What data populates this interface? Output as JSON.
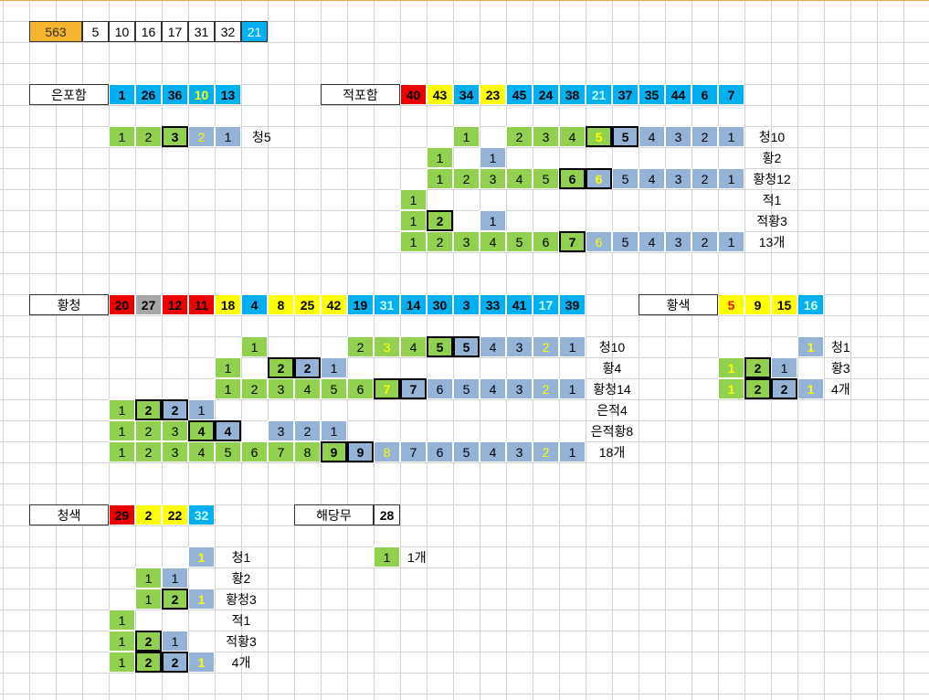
{
  "palette": {
    "orange": "#f5b52e",
    "red": "#ee0000",
    "yellow": "#ffff00",
    "blue": "#00b0f0",
    "green": "#92d050",
    "lightblue": "#95b3d7",
    "gray": "#a6a6a6",
    "white": "#ffffff",
    "text_yellow": "#ffff00",
    "text_cyan": "#ccffff",
    "text_red": "#ff0000",
    "gridline": "#d4d4d4"
  },
  "draw_row": {
    "label": "563",
    "cells": [
      {
        "v": "5",
        "c": "white"
      },
      {
        "v": "10",
        "c": "white"
      },
      {
        "v": "16",
        "c": "white"
      },
      {
        "v": "17",
        "c": "white"
      },
      {
        "v": "31",
        "c": "white"
      },
      {
        "v": "32",
        "c": "white"
      },
      {
        "v": "21",
        "c": "blue"
      }
    ]
  },
  "sections": [
    {
      "name": "은포함",
      "numbers": [
        {
          "v": "1",
          "c": "blue"
        },
        {
          "v": "26",
          "c": "blue"
        },
        {
          "v": "36",
          "c": "blue"
        },
        {
          "v": "10",
          "c": "blue",
          "t": "text_yellow"
        },
        {
          "v": "13",
          "c": "blue"
        }
      ],
      "rows": [
        {
          "cells": [
            {
              "v": "1",
              "c": "green"
            },
            {
              "v": "2",
              "c": "green"
            },
            {
              "v": "3",
              "c": "green",
              "bold": true,
              "box": true
            },
            {
              "v": "2",
              "c": "lightblue",
              "t": "text_yellow"
            },
            {
              "v": "1",
              "c": "lightblue"
            }
          ],
          "label": "청5"
        }
      ]
    },
    {
      "name": "적포함",
      "numbers": [
        {
          "v": "40",
          "c": "red"
        },
        {
          "v": "43",
          "c": "yellow"
        },
        {
          "v": "34",
          "c": "blue"
        },
        {
          "v": "23",
          "c": "yellow"
        },
        {
          "v": "45",
          "c": "blue"
        },
        {
          "v": "24",
          "c": "blue"
        },
        {
          "v": "38",
          "c": "blue"
        },
        {
          "v": "21",
          "c": "blue",
          "t": "text_cyan"
        },
        {
          "v": "37",
          "c": "blue"
        },
        {
          "v": "35",
          "c": "blue"
        },
        {
          "v": "44",
          "c": "blue"
        },
        {
          "v": "6",
          "c": "blue"
        },
        {
          "v": "7",
          "c": "blue"
        }
      ],
      "rows": [
        {
          "cells": [
            null,
            null,
            {
              "v": "1",
              "c": "green"
            },
            null,
            {
              "v": "2",
              "c": "green"
            },
            {
              "v": "3",
              "c": "green"
            },
            {
              "v": "4",
              "c": "green"
            },
            {
              "v": "5",
              "c": "green",
              "t": "text_yellow",
              "bold": true,
              "box": true
            },
            {
              "v": "5",
              "c": "lightblue",
              "bold": true,
              "box": true
            },
            {
              "v": "4",
              "c": "lightblue"
            },
            {
              "v": "3",
              "c": "lightblue"
            },
            {
              "v": "2",
              "c": "lightblue"
            },
            {
              "v": "1",
              "c": "lightblue"
            }
          ],
          "label": "청10"
        },
        {
          "cells": [
            null,
            {
              "v": "1",
              "c": "green"
            },
            null,
            {
              "v": "1",
              "c": "lightblue"
            }
          ],
          "label": "황2"
        },
        {
          "cells": [
            null,
            {
              "v": "1",
              "c": "green"
            },
            {
              "v": "2",
              "c": "green"
            },
            {
              "v": "3",
              "c": "green"
            },
            {
              "v": "4",
              "c": "green"
            },
            {
              "v": "5",
              "c": "green"
            },
            {
              "v": "6",
              "c": "green",
              "bold": true,
              "box": true
            },
            {
              "v": "6",
              "c": "lightblue",
              "t": "text_yellow",
              "bold": true,
              "box": true
            },
            {
              "v": "5",
              "c": "lightblue"
            },
            {
              "v": "4",
              "c": "lightblue"
            },
            {
              "v": "3",
              "c": "lightblue"
            },
            {
              "v": "2",
              "c": "lightblue"
            },
            {
              "v": "1",
              "c": "lightblue"
            }
          ],
          "label": "황청12"
        },
        {
          "cells": [
            {
              "v": "1",
              "c": "green"
            }
          ],
          "label": "적1"
        },
        {
          "cells": [
            {
              "v": "1",
              "c": "green"
            },
            {
              "v": "2",
              "c": "green",
              "bold": true,
              "box": true
            },
            null,
            {
              "v": "1",
              "c": "lightblue"
            }
          ],
          "label": "적황3"
        },
        {
          "cells": [
            {
              "v": "1",
              "c": "green"
            },
            {
              "v": "2",
              "c": "green"
            },
            {
              "v": "3",
              "c": "green"
            },
            {
              "v": "4",
              "c": "green"
            },
            {
              "v": "5",
              "c": "green"
            },
            {
              "v": "6",
              "c": "green"
            },
            {
              "v": "7",
              "c": "green",
              "bold": true,
              "box": true
            },
            {
              "v": "6",
              "c": "lightblue",
              "t": "text_yellow"
            },
            {
              "v": "5",
              "c": "lightblue"
            },
            {
              "v": "4",
              "c": "lightblue"
            },
            {
              "v": "3",
              "c": "lightblue"
            },
            {
              "v": "2",
              "c": "lightblue"
            },
            {
              "v": "1",
              "c": "lightblue"
            }
          ],
          "label": "13개"
        }
      ]
    },
    {
      "name": "황청",
      "numbers": [
        {
          "v": "20",
          "c": "red"
        },
        {
          "v": "27",
          "c": "gray"
        },
        {
          "v": "12",
          "c": "red"
        },
        {
          "v": "11",
          "c": "red"
        },
        {
          "v": "18",
          "c": "yellow"
        },
        {
          "v": "4",
          "c": "blue"
        },
        {
          "v": "8",
          "c": "yellow"
        },
        {
          "v": "25",
          "c": "yellow"
        },
        {
          "v": "42",
          "c": "yellow"
        },
        {
          "v": "19",
          "c": "blue"
        },
        {
          "v": "31",
          "c": "blue",
          "t": "text_cyan"
        },
        {
          "v": "14",
          "c": "blue"
        },
        {
          "v": "30",
          "c": "blue"
        },
        {
          "v": "3",
          "c": "blue"
        },
        {
          "v": "33",
          "c": "blue"
        },
        {
          "v": "41",
          "c": "blue"
        },
        {
          "v": "17",
          "c": "blue",
          "t": "text_cyan"
        },
        {
          "v": "39",
          "c": "blue"
        }
      ],
      "rows": [
        {
          "cells": [
            null,
            null,
            null,
            null,
            null,
            {
              "v": "1",
              "c": "green"
            },
            null,
            null,
            null,
            {
              "v": "2",
              "c": "green"
            },
            {
              "v": "3",
              "c": "green",
              "t": "text_yellow"
            },
            {
              "v": "4",
              "c": "green"
            },
            {
              "v": "5",
              "c": "green",
              "bold": true,
              "box": true
            },
            {
              "v": "5",
              "c": "lightblue",
              "bold": true,
              "box": true
            },
            {
              "v": "4",
              "c": "lightblue"
            },
            {
              "v": "3",
              "c": "lightblue"
            },
            {
              "v": "2",
              "c": "lightblue",
              "t": "text_yellow"
            },
            {
              "v": "1",
              "c": "lightblue"
            }
          ],
          "label": "청10"
        },
        {
          "cells": [
            null,
            null,
            null,
            null,
            {
              "v": "1",
              "c": "green"
            },
            null,
            {
              "v": "2",
              "c": "green",
              "bold": true,
              "box": true
            },
            {
              "v": "2",
              "c": "lightblue",
              "bold": true,
              "box": true
            },
            {
              "v": "1",
              "c": "lightblue"
            }
          ],
          "label": "황4"
        },
        {
          "cells": [
            null,
            null,
            null,
            null,
            {
              "v": "1",
              "c": "green"
            },
            {
              "v": "2",
              "c": "green"
            },
            {
              "v": "3",
              "c": "green"
            },
            {
              "v": "4",
              "c": "green"
            },
            {
              "v": "5",
              "c": "green"
            },
            {
              "v": "6",
              "c": "green"
            },
            {
              "v": "7",
              "c": "green",
              "t": "text_yellow",
              "bold": true,
              "box": true
            },
            {
              "v": "7",
              "c": "lightblue",
              "bold": true,
              "box": true
            },
            {
              "v": "6",
              "c": "lightblue"
            },
            {
              "v": "5",
              "c": "lightblue"
            },
            {
              "v": "4",
              "c": "lightblue"
            },
            {
              "v": "3",
              "c": "lightblue"
            },
            {
              "v": "2",
              "c": "lightblue",
              "t": "text_yellow"
            },
            {
              "v": "1",
              "c": "lightblue"
            }
          ],
          "label": "황청14"
        },
        {
          "cells": [
            {
              "v": "1",
              "c": "green"
            },
            {
              "v": "2",
              "c": "green",
              "bold": true,
              "box": true
            },
            {
              "v": "2",
              "c": "lightblue",
              "bold": true,
              "box": true
            },
            {
              "v": "1",
              "c": "lightblue"
            }
          ],
          "label": "은적4"
        },
        {
          "cells": [
            {
              "v": "1",
              "c": "green"
            },
            {
              "v": "2",
              "c": "green"
            },
            {
              "v": "3",
              "c": "green"
            },
            {
              "v": "4",
              "c": "green",
              "bold": true,
              "box": true
            },
            {
              "v": "4",
              "c": "lightblue",
              "bold": true,
              "box": true
            },
            null,
            {
              "v": "3",
              "c": "lightblue"
            },
            {
              "v": "2",
              "c": "lightblue"
            },
            {
              "v": "1",
              "c": "lightblue"
            }
          ],
          "label": "은적황8"
        },
        {
          "cells": [
            {
              "v": "1",
              "c": "green"
            },
            {
              "v": "2",
              "c": "green"
            },
            {
              "v": "3",
              "c": "green"
            },
            {
              "v": "4",
              "c": "green"
            },
            {
              "v": "5",
              "c": "green"
            },
            {
              "v": "6",
              "c": "green"
            },
            {
              "v": "7",
              "c": "green"
            },
            {
              "v": "8",
              "c": "green"
            },
            {
              "v": "9",
              "c": "green",
              "bold": true,
              "box": true
            },
            {
              "v": "9",
              "c": "lightblue",
              "bold": true,
              "box": true
            },
            {
              "v": "8",
              "c": "lightblue",
              "t": "text_yellow"
            },
            {
              "v": "7",
              "c": "lightblue"
            },
            {
              "v": "6",
              "c": "lightblue"
            },
            {
              "v": "5",
              "c": "lightblue"
            },
            {
              "v": "4",
              "c": "lightblue"
            },
            {
              "v": "3",
              "c": "lightblue"
            },
            {
              "v": "2",
              "c": "lightblue",
              "t": "text_yellow"
            },
            {
              "v": "1",
              "c": "lightblue"
            }
          ],
          "label": "18개"
        }
      ]
    },
    {
      "name": "황색",
      "numbers": [
        {
          "v": "5",
          "c": "yellow",
          "t": "text_red"
        },
        {
          "v": "9",
          "c": "yellow"
        },
        {
          "v": "15",
          "c": "yellow"
        },
        {
          "v": "16",
          "c": "blue",
          "t": "text_cyan"
        }
      ],
      "rows": [
        {
          "cells": [
            null,
            null,
            null,
            {
              "v": "1",
              "c": "lightblue",
              "t": "text_yellow",
              "bold": true
            }
          ],
          "label": "청1"
        },
        {
          "cells": [
            {
              "v": "1",
              "c": "green",
              "t": "text_yellow",
              "bold": true
            },
            {
              "v": "2",
              "c": "green",
              "bold": true,
              "box": true
            },
            {
              "v": "1",
              "c": "lightblue"
            }
          ],
          "label": "황3"
        },
        {
          "cells": [
            {
              "v": "1",
              "c": "green",
              "t": "text_yellow",
              "bold": true
            },
            {
              "v": "2",
              "c": "green",
              "bold": true,
              "box": true
            },
            {
              "v": "2",
              "c": "lightblue",
              "bold": true,
              "box": true
            },
            {
              "v": "1",
              "c": "lightblue",
              "t": "text_yellow",
              "bold": true
            }
          ],
          "label": "4개"
        }
      ]
    },
    {
      "name": "청색",
      "numbers": [
        {
          "v": "29",
          "c": "red"
        },
        {
          "v": "2",
          "c": "yellow"
        },
        {
          "v": "22",
          "c": "yellow"
        },
        {
          "v": "32",
          "c": "blue",
          "t": "text_cyan"
        }
      ],
      "rows": [
        {
          "cells": [
            null,
            null,
            null,
            {
              "v": "1",
              "c": "lightblue",
              "t": "text_yellow",
              "bold": true
            }
          ],
          "label": "청1"
        },
        {
          "cells": [
            null,
            {
              "v": "1",
              "c": "green"
            },
            {
              "v": "1",
              "c": "lightblue"
            }
          ],
          "label": "황2"
        },
        {
          "cells": [
            null,
            {
              "v": "1",
              "c": "green"
            },
            {
              "v": "2",
              "c": "green",
              "bold": true,
              "box": true
            },
            {
              "v": "1",
              "c": "lightblue",
              "t": "text_yellow",
              "bold": true
            }
          ],
          "label": "황청3"
        },
        {
          "cells": [
            {
              "v": "1",
              "c": "green"
            }
          ],
          "label": "적1"
        },
        {
          "cells": [
            {
              "v": "1",
              "c": "green"
            },
            {
              "v": "2",
              "c": "green",
              "bold": true,
              "box": true
            },
            {
              "v": "1",
              "c": "lightblue"
            }
          ],
          "label": "적황3"
        },
        {
          "cells": [
            {
              "v": "1",
              "c": "green"
            },
            {
              "v": "2",
              "c": "green",
              "bold": true,
              "box": true
            },
            {
              "v": "2",
              "c": "lightblue",
              "bold": true,
              "box": true
            },
            {
              "v": "1",
              "c": "lightblue",
              "t": "text_yellow",
              "bold": true
            }
          ],
          "label": "4개"
        }
      ]
    },
    {
      "name": "해당무",
      "numbers": [
        {
          "v": "28",
          "c": "white",
          "bold": true
        }
      ],
      "rows": [
        {
          "cells": [
            {
              "v": "1",
              "c": "green"
            }
          ],
          "label": "1개"
        }
      ]
    }
  ]
}
